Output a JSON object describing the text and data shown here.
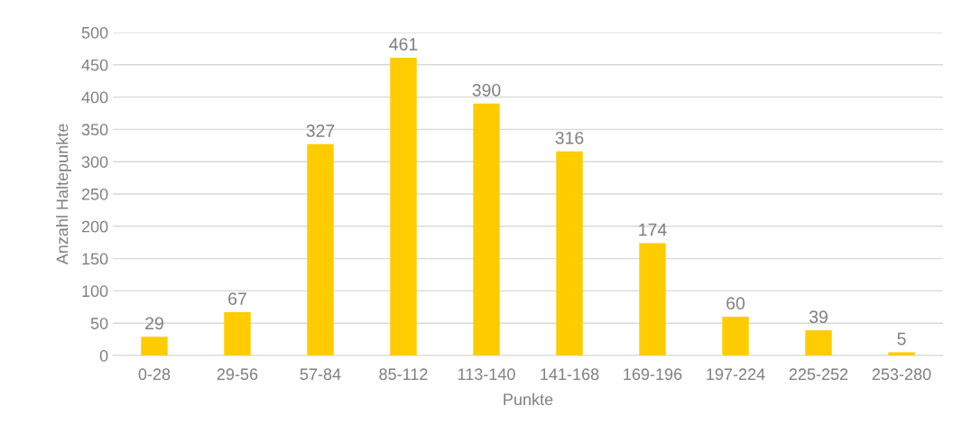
{
  "chart_data": {
    "type": "bar",
    "xlabel": "Punkte",
    "ylabel": "Anzahl Haltepunkte",
    "categories": [
      "0-28",
      "29-56",
      "57-84",
      "85-112",
      "113-140",
      "141-168",
      "169-196",
      "197-224",
      "225-252",
      "253-280"
    ],
    "values": [
      29,
      67,
      327,
      461,
      390,
      316,
      174,
      60,
      39,
      5
    ],
    "color": "#ffcc00",
    "ylim": [
      0,
      500
    ],
    "yticks": [
      0,
      50,
      100,
      150,
      200,
      250,
      300,
      350,
      400,
      450,
      500
    ],
    "grid": "y",
    "data_labels": true
  }
}
